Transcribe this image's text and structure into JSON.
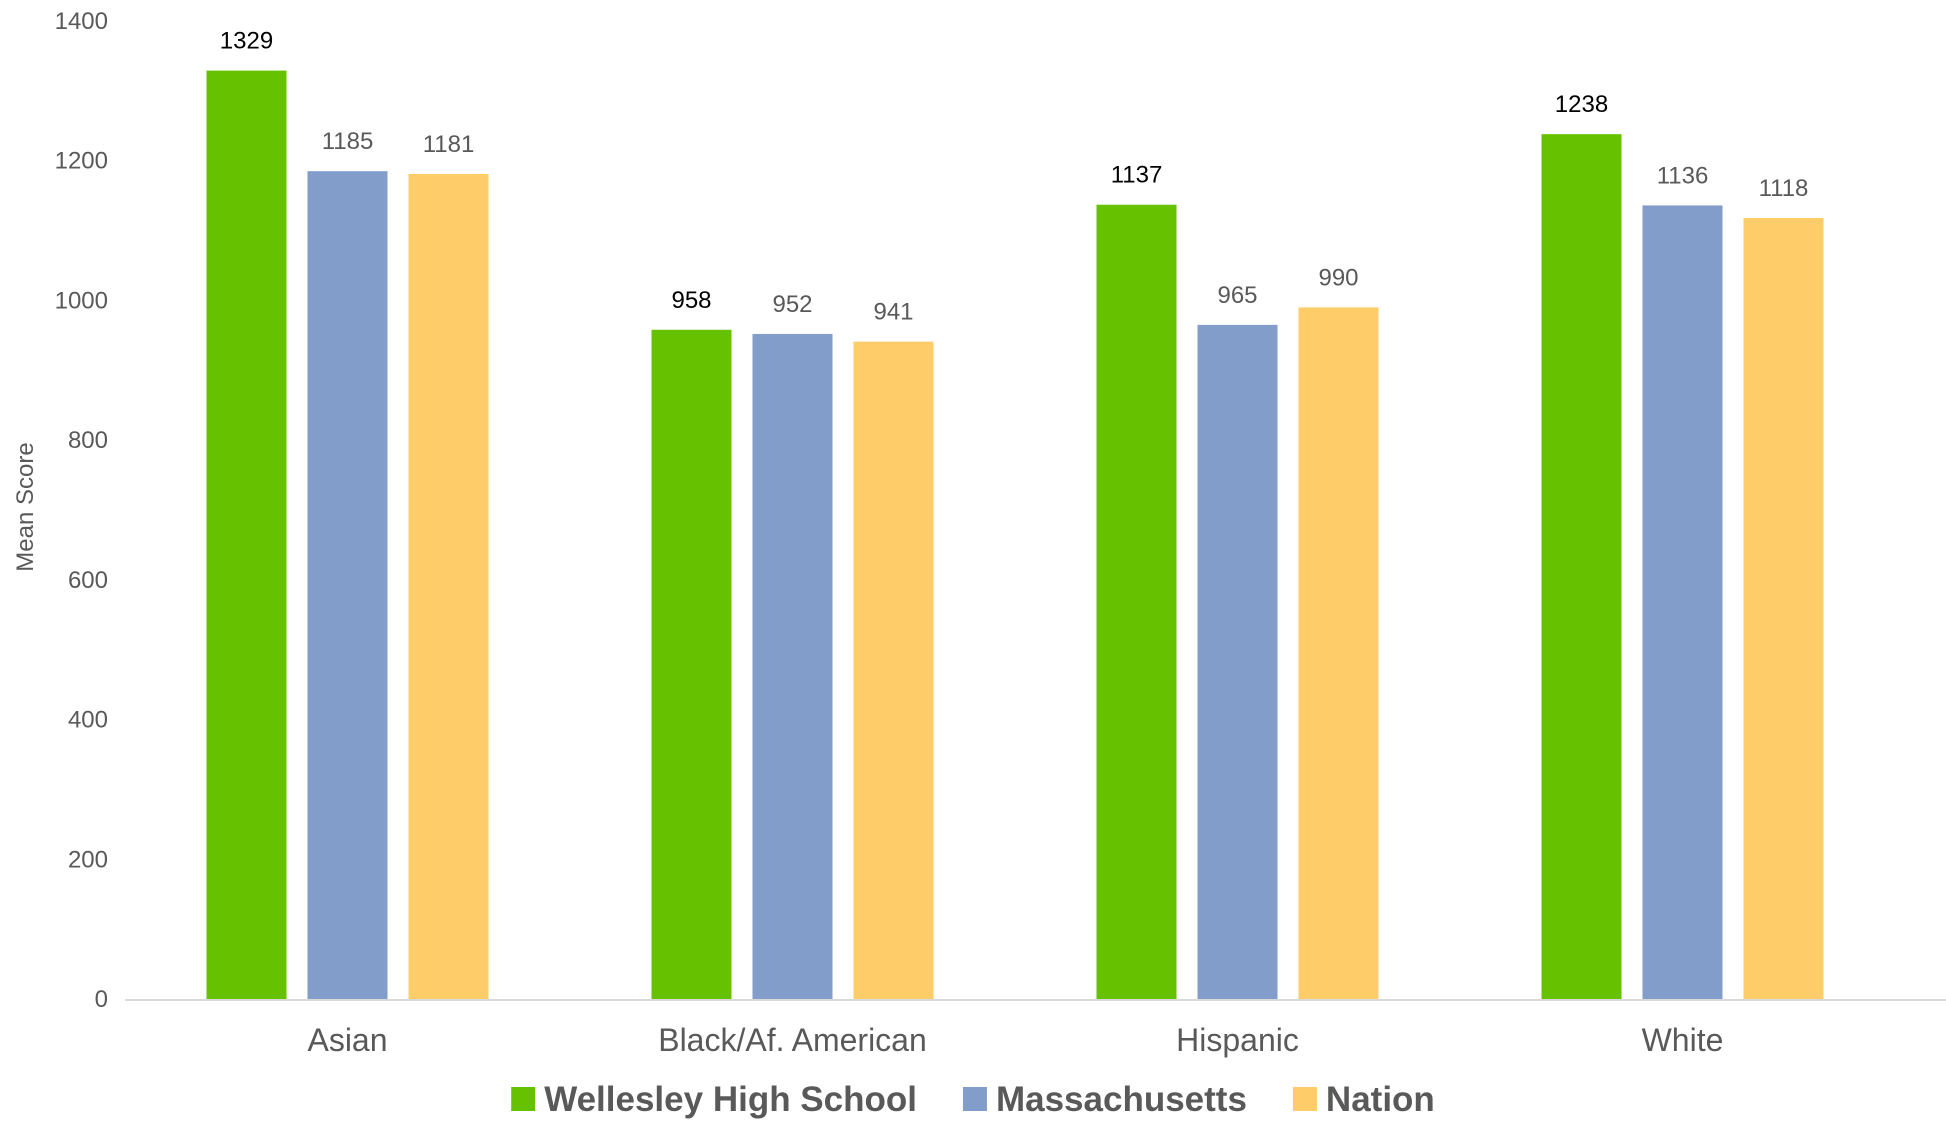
{
  "chart_data": {
    "type": "bar",
    "title": "",
    "xlabel": "",
    "ylabel": "Mean Score",
    "ylim": [
      0,
      1400
    ],
    "yticks": [
      0,
      200,
      400,
      600,
      800,
      1000,
      1200,
      1400
    ],
    "grid": false,
    "legend_position": "bottom",
    "categories": [
      "Asian",
      "Black/Af. American",
      "Hispanic",
      "White"
    ],
    "series": [
      {
        "name": "Wellesley High School",
        "color": "#66c100",
        "label_color": "#000000",
        "values": [
          1329,
          958,
          1137,
          1238
        ]
      },
      {
        "name": "Massachusetts",
        "color": "#829dc9",
        "label_color": "#595959",
        "values": [
          1185,
          952,
          965,
          1136
        ]
      },
      {
        "name": "Nation",
        "color": "#fecc69",
        "label_color": "#595959",
        "values": [
          1181,
          941,
          990,
          1118
        ]
      }
    ]
  }
}
